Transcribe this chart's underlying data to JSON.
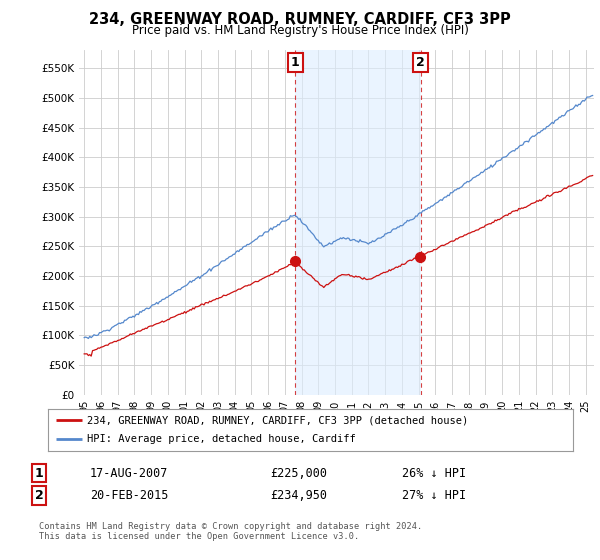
{
  "title": "234, GREENWAY ROAD, RUMNEY, CARDIFF, CF3 3PP",
  "subtitle": "Price paid vs. HM Land Registry's House Price Index (HPI)",
  "ylim": [
    0,
    580000
  ],
  "yticks": [
    0,
    50000,
    100000,
    150000,
    200000,
    250000,
    300000,
    350000,
    400000,
    450000,
    500000,
    550000
  ],
  "hpi_color": "#5588cc",
  "hpi_fill_color": "#ccddf5",
  "sale_color": "#cc1111",
  "marker1_year": 2007.625,
  "marker2_year": 2015.125,
  "sale1_price": 225000,
  "sale2_price": 234950,
  "sale1_date": "17-AUG-2007",
  "sale2_date": "20-FEB-2015",
  "sale1_hpi_pct": "26% ↓ HPI",
  "sale2_hpi_pct": "27% ↓ HPI",
  "legend_sale_label": "234, GREENWAY ROAD, RUMNEY, CARDIFF, CF3 3PP (detached house)",
  "legend_hpi_label": "HPI: Average price, detached house, Cardiff",
  "footer": "Contains HM Land Registry data © Crown copyright and database right 2024.\nThis data is licensed under the Open Government Licence v3.0.",
  "plot_bg_color": "#ffffff",
  "grid_color": "#cccccc",
  "label_box_color": "#cc1111",
  "shade_color": "#ddeeff"
}
